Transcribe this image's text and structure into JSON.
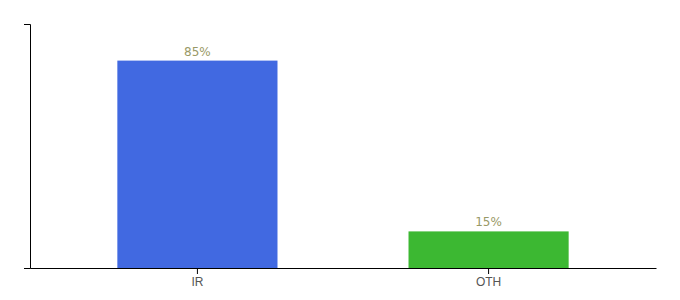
{
  "chart_data": {
    "type": "bar",
    "categories": [
      "IR",
      "OTH"
    ],
    "values": [
      85,
      15
    ],
    "colors": [
      "#4169e1",
      "#3cb832"
    ],
    "value_labels": [
      "85%",
      "15%"
    ],
    "data_labels": true,
    "ylim": [
      0,
      100
    ],
    "yticks": [],
    "tick_labels": "x",
    "grid": false
  }
}
